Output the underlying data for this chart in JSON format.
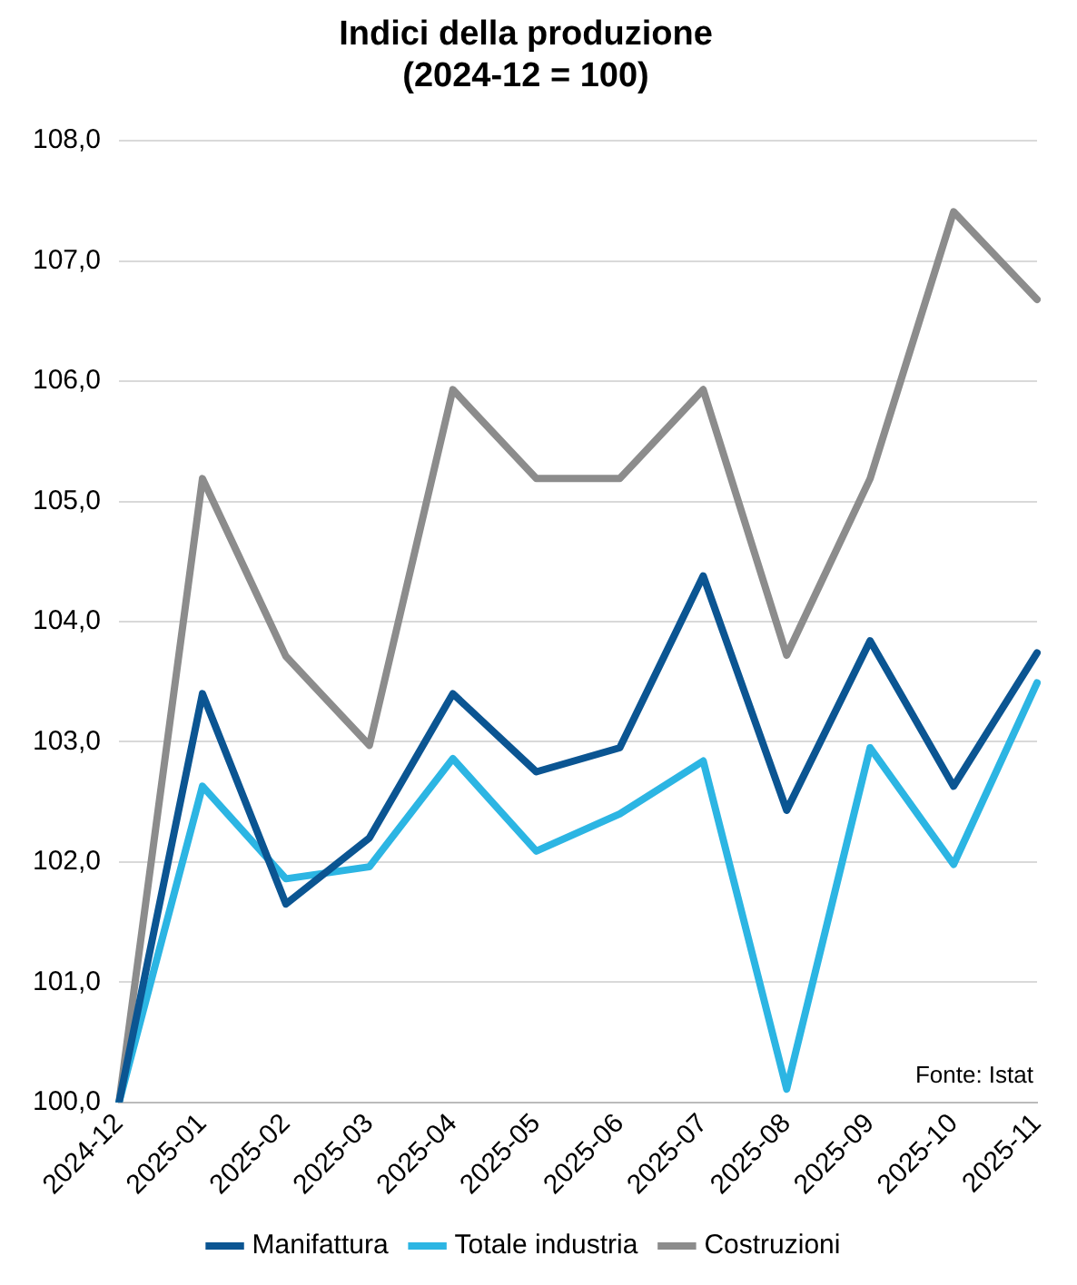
{
  "chart_data": {
    "type": "line",
    "title": "Indici della produzione",
    "subtitle": "(2024-12 = 100)",
    "categories": [
      "2024-12",
      "2025-01",
      "2025-02",
      "2025-03",
      "2025-04",
      "2025-05",
      "2025-06",
      "2025-07",
      "2025-08",
      "2025-09",
      "2025-10",
      "2025-11"
    ],
    "series": [
      {
        "name": "Manifattura",
        "color": "#0b5592",
        "values": [
          100,
          103.4,
          101.65,
          102.2,
          103.4,
          102.75,
          102.95,
          104.38,
          102.43,
          103.84,
          102.63,
          103.74
        ]
      },
      {
        "name": "Totale industria",
        "color": "#2cb5e3",
        "values": [
          100,
          102.63,
          101.86,
          101.96,
          102.86,
          102.09,
          102.4,
          102.84,
          100.11,
          102.95,
          101.98,
          103.49
        ]
      },
      {
        "name": "Costruzioni",
        "color": "#8c8c8c",
        "values": [
          100,
          105.19,
          103.71,
          102.97,
          105.93,
          105.19,
          105.19,
          105.93,
          103.72,
          105.19,
          107.41,
          106.68
        ]
      }
    ],
    "ylim": [
      100,
      108
    ],
    "yticks": [
      {
        "value": 100,
        "label": "100,0"
      },
      {
        "value": 101,
        "label": "101,0"
      },
      {
        "value": 102,
        "label": "102,0"
      },
      {
        "value": 103,
        "label": "103,0"
      },
      {
        "value": 104,
        "label": "104,0"
      },
      {
        "value": 105,
        "label": "105,0"
      },
      {
        "value": 106,
        "label": "106,0"
      },
      {
        "value": 107,
        "label": "107,0"
      },
      {
        "value": 108,
        "label": "108,0"
      }
    ],
    "grid": "y",
    "legend": "bottom",
    "marker": "none",
    "line_style": "solid",
    "annotations": [
      "Fonte: Istat"
    ]
  }
}
